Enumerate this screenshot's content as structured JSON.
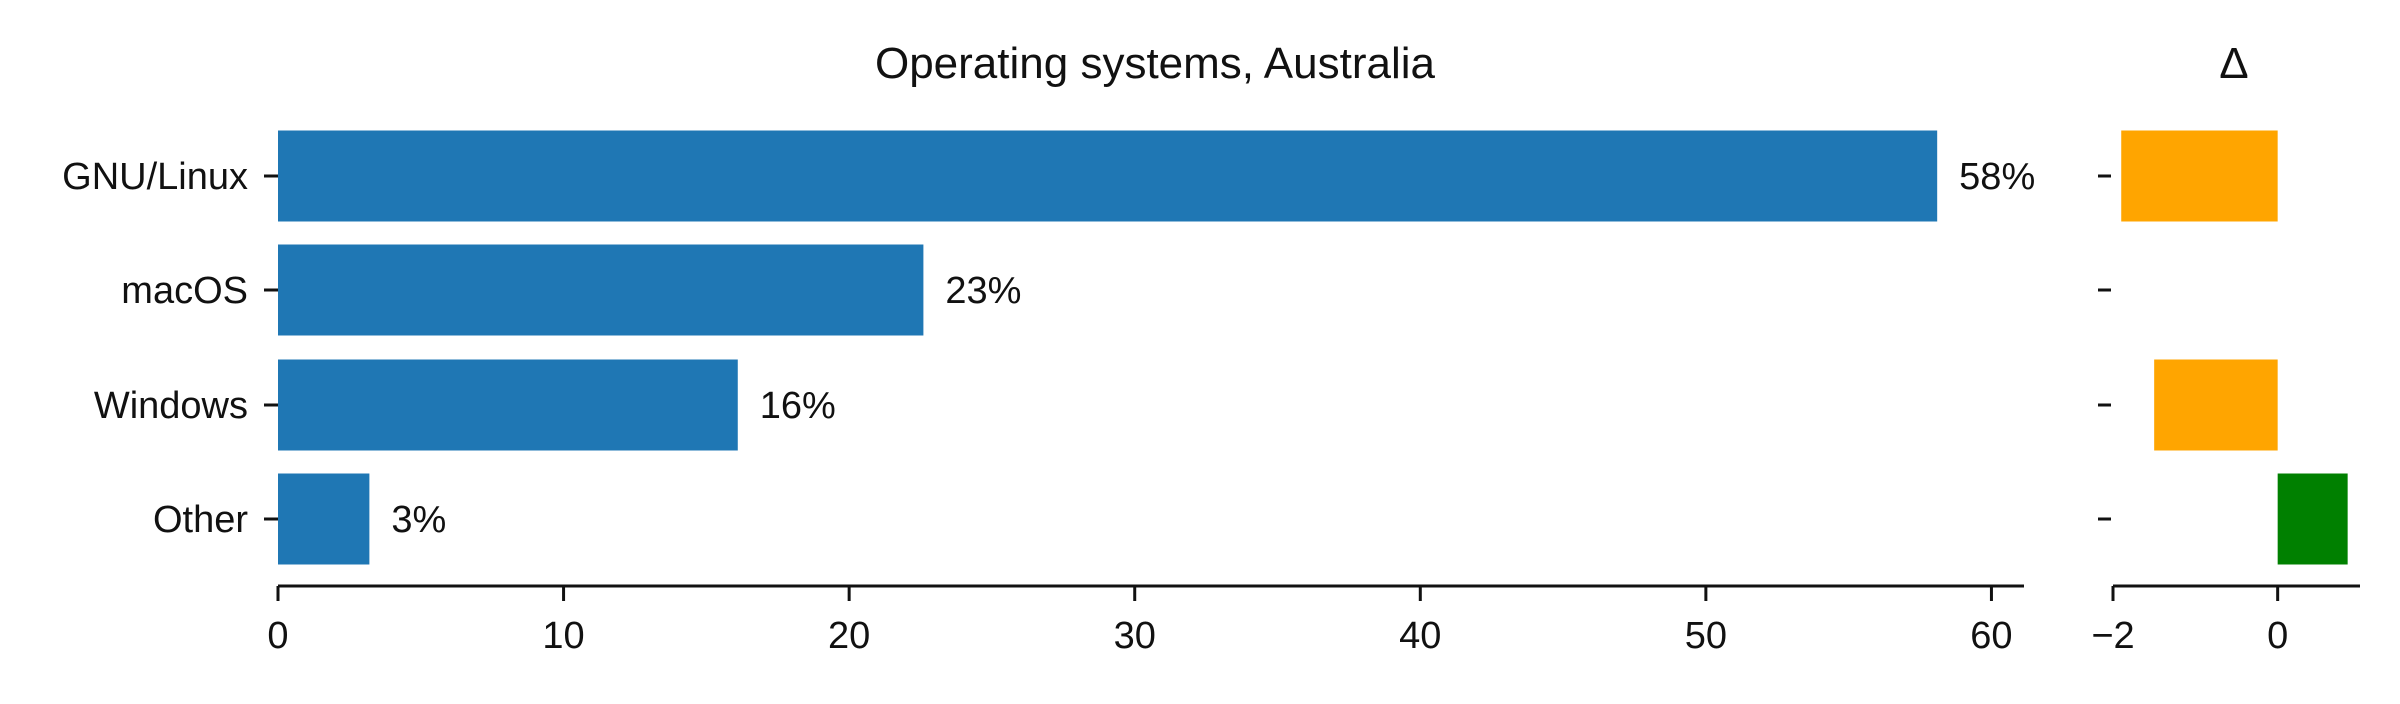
{
  "chart_data": [
    {
      "type": "bar",
      "orientation": "horizontal",
      "title": "Operating systems, Australia",
      "xlabel": "",
      "ylabel": "",
      "categories": [
        "GNU/Linux",
        "macOS",
        "Windows",
        "Other"
      ],
      "values": [
        58.1,
        22.6,
        16.1,
        3.2
      ],
      "value_labels": [
        "58%",
        "23%",
        "16%",
        "3%"
      ],
      "xlim": [
        0,
        61
      ],
      "xticks": [
        0,
        10,
        20,
        30,
        40,
        50,
        60
      ],
      "grid": false,
      "bar_color": "#1f77b4"
    },
    {
      "type": "bar",
      "orientation": "horizontal",
      "title": "Δ",
      "xlabel": "",
      "ylabel": "",
      "categories": [
        "GNU/Linux",
        "macOS",
        "Windows",
        "Other"
      ],
      "values": [
        -1.9,
        0.0,
        -1.5,
        0.85
      ],
      "xlim": [
        -2.0,
        1.0
      ],
      "xticks": [
        -2,
        0
      ],
      "xtick_labels": [
        "−2",
        "0"
      ],
      "grid": false,
      "negative_color": "#ffa500",
      "positive_color": "#008000"
    }
  ]
}
